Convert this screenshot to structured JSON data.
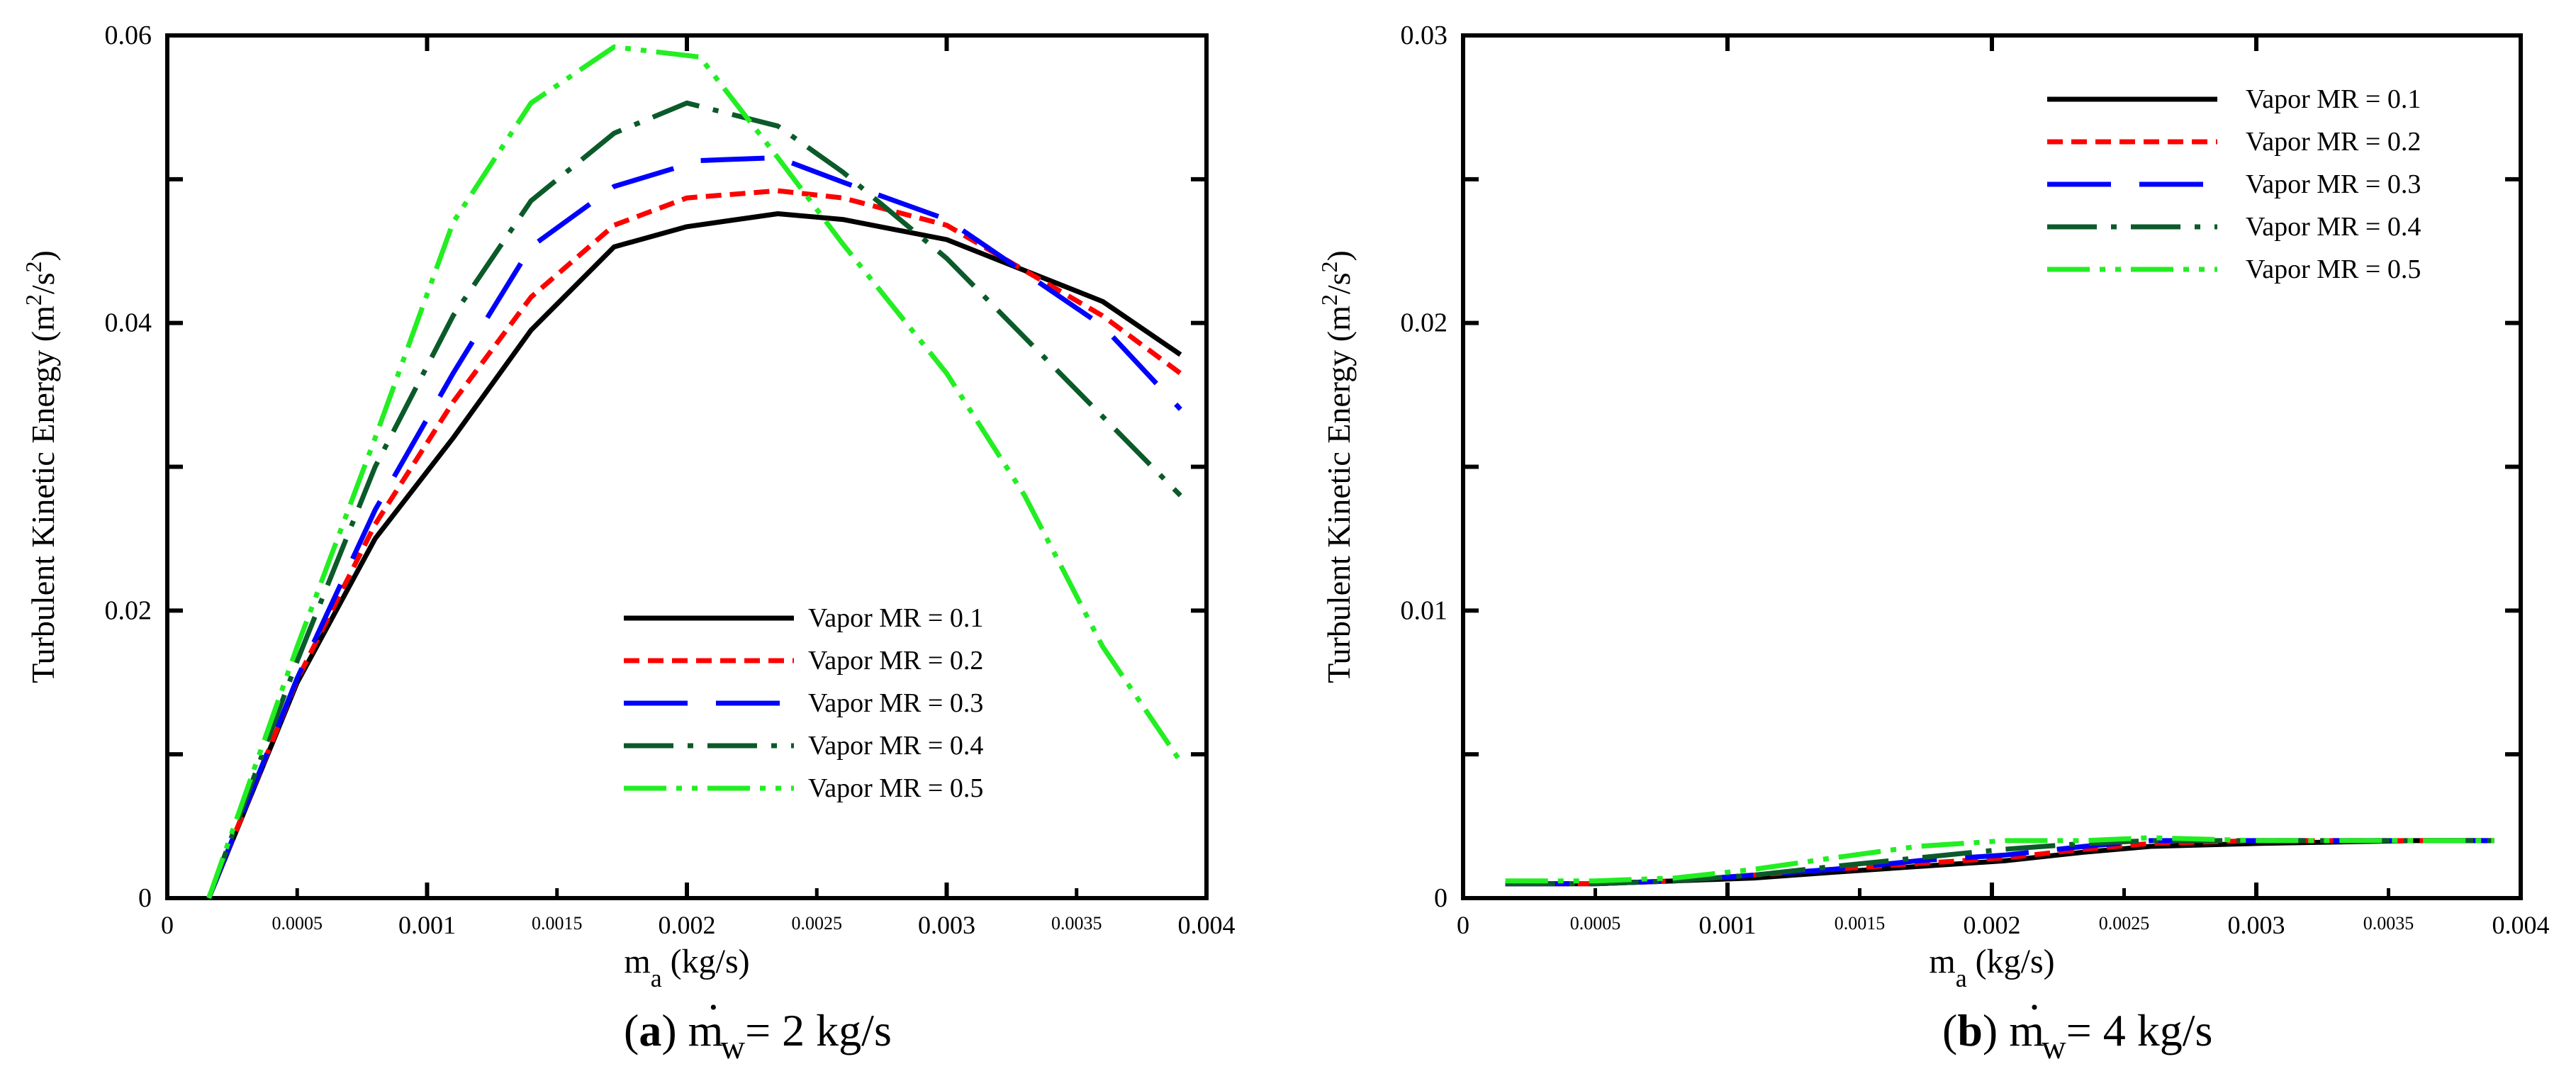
{
  "chart_data": [
    {
      "type": "line",
      "panel": "a",
      "caption": {
        "letter": "a",
        "text": "ṁw= 2 kg/s",
        "m": "m",
        "dot": "·",
        "sub": "w",
        "rest": "= 2 kg/s"
      },
      "xlabel": {
        "main": "m",
        "sub": "a",
        "unit": " (kg/s)"
      },
      "ylabel": {
        "main": "Turbulent Kinetic Energy (m",
        "sup1": "2",
        "mid": "/s",
        "sup2": "2",
        "end": ")"
      },
      "xlim": [
        0,
        0.004
      ],
      "ylim": [
        0,
        0.06
      ],
      "x_ticks_major": [
        {
          "value": 0,
          "label": "0"
        },
        {
          "value": 0.001,
          "label": "0.001"
        },
        {
          "value": 0.002,
          "label": "0.002"
        },
        {
          "value": 0.003,
          "label": "0.003"
        },
        {
          "value": 0.004,
          "label": "0.004"
        }
      ],
      "x_ticks_minor": [
        {
          "value": 0.0005,
          "label": "0.0005"
        },
        {
          "value": 0.0015,
          "label": "0.0015"
        },
        {
          "value": 0.0025,
          "label": "0.0025"
        },
        {
          "value": 0.0035,
          "label": "0.0035"
        }
      ],
      "y_ticks": [
        {
          "value": 0,
          "label": "0"
        },
        {
          "value": 0.02,
          "label": "0.02"
        },
        {
          "value": 0.04,
          "label": "0.04"
        },
        {
          "value": 0.06,
          "label": "0.06"
        }
      ],
      "y_ticks_minor": [
        0.01,
        0.03,
        0.05
      ],
      "legend_position": "lower-right",
      "series": [
        {
          "name": "Vapor MR = 0.1",
          "color": "#000000",
          "dash": "solid",
          "x": [
            0.00016,
            0.0005,
            0.0008,
            0.0011,
            0.0014,
            0.00172,
            0.002,
            0.00235,
            0.0026,
            0.003,
            0.0036,
            0.0039
          ],
          "y": [
            0.0,
            0.015,
            0.025,
            0.032,
            0.0395,
            0.0453,
            0.0467,
            0.0476,
            0.0472,
            0.0458,
            0.0415,
            0.0378
          ]
        },
        {
          "name": "Vapor MR = 0.2",
          "color": "#ff0000",
          "dash": "short-dash",
          "x": [
            0.00016,
            0.0005,
            0.0008,
            0.0011,
            0.0014,
            0.00172,
            0.002,
            0.00235,
            0.0026,
            0.003,
            0.0036,
            0.0039
          ],
          "y": [
            0.0,
            0.0152,
            0.026,
            0.0345,
            0.0418,
            0.0468,
            0.0487,
            0.0492,
            0.0487,
            0.0468,
            0.0405,
            0.0365
          ]
        },
        {
          "name": "Vapor MR = 0.3",
          "color": "#0000ff",
          "dash": "long-dash",
          "x": [
            0.00016,
            0.0005,
            0.0008,
            0.0011,
            0.0014,
            0.00172,
            0.00205,
            0.00235,
            0.0026,
            0.003,
            0.0036,
            0.0039
          ],
          "y": [
            0.0,
            0.0153,
            0.027,
            0.0365,
            0.0453,
            0.0495,
            0.0513,
            0.0515,
            0.0498,
            0.0472,
            0.0398,
            0.034
          ]
        },
        {
          "name": "Vapor MR = 0.4",
          "color": "#0b5a2a",
          "dash": "dash-dot",
          "x": [
            0.00016,
            0.0005,
            0.0008,
            0.0011,
            0.0014,
            0.00172,
            0.002,
            0.00235,
            0.0026,
            0.003,
            0.0036,
            0.0039
          ],
          "y": [
            0.0,
            0.0165,
            0.03,
            0.0405,
            0.0485,
            0.0532,
            0.0553,
            0.0537,
            0.0505,
            0.0445,
            0.0335,
            0.028
          ]
        },
        {
          "name": "Vapor MR = 0.5",
          "color": "#22ee22",
          "dash": "dash-dot-dot",
          "x": [
            0.00016,
            0.0005,
            0.0008,
            0.0011,
            0.0014,
            0.00172,
            0.00205,
            0.00235,
            0.0026,
            0.003,
            0.0033,
            0.0036,
            0.0039
          ],
          "y": [
            0.0,
            0.0175,
            0.032,
            0.047,
            0.0553,
            0.0592,
            0.0585,
            0.0515,
            0.0455,
            0.0365,
            0.028,
            0.0175,
            0.0095
          ]
        }
      ]
    },
    {
      "type": "line",
      "panel": "b",
      "caption": {
        "letter": "b",
        "text": "ṁw= 4 kg/s",
        "m": "m",
        "dot": "·",
        "sub": "w",
        "rest": "= 4 kg/s"
      },
      "xlabel": {
        "main": "m",
        "sub": "a",
        "unit": " (kg/s)"
      },
      "ylabel": {
        "main": "Turbulent Kinetic Energy (m",
        "sup1": "2",
        "mid": "/s",
        "sup2": "2",
        "end": ")"
      },
      "xlim": [
        0,
        0.004
      ],
      "ylim": [
        0,
        0.03
      ],
      "x_ticks_major": [
        {
          "value": 0,
          "label": "0"
        },
        {
          "value": 0.001,
          "label": "0.001"
        },
        {
          "value": 0.002,
          "label": "0.002"
        },
        {
          "value": 0.003,
          "label": "0.003"
        },
        {
          "value": 0.004,
          "label": "0.004"
        }
      ],
      "x_ticks_minor": [
        {
          "value": 0.0005,
          "label": "0.0005"
        },
        {
          "value": 0.0015,
          "label": "0.0015"
        },
        {
          "value": 0.0025,
          "label": "0.0025"
        },
        {
          "value": 0.0035,
          "label": "0.0035"
        }
      ],
      "y_ticks": [
        {
          "value": 0,
          "label": "0"
        },
        {
          "value": 0.01,
          "label": "0.01"
        },
        {
          "value": 0.02,
          "label": "0.02"
        },
        {
          "value": 0.03,
          "label": "0.03"
        }
      ],
      "y_ticks_minor": [
        0.005,
        0.015,
        0.025
      ],
      "legend_position": "top-right",
      "series": [
        {
          "name": "Vapor MR = 0.1",
          "color": "#000000",
          "dash": "solid",
          "x": [
            0.00016,
            0.0005,
            0.0008,
            0.0011,
            0.0014,
            0.00172,
            0.00205,
            0.00235,
            0.0026,
            0.003,
            0.0036,
            0.0039
          ],
          "y": [
            0.0005,
            0.0005,
            0.0006,
            0.0007,
            0.0009,
            0.0011,
            0.0013,
            0.0016,
            0.0018,
            0.0019,
            0.002,
            0.002
          ]
        },
        {
          "name": "Vapor MR = 0.2",
          "color": "#ff0000",
          "dash": "short-dash",
          "x": [
            0.00016,
            0.0005,
            0.0008,
            0.0011,
            0.0014,
            0.00172,
            0.00205,
            0.00235,
            0.0026,
            0.003,
            0.0036,
            0.0039
          ],
          "y": [
            0.0005,
            0.0005,
            0.0006,
            0.0008,
            0.001,
            0.0012,
            0.0014,
            0.0017,
            0.0019,
            0.002,
            0.002,
            0.002
          ]
        },
        {
          "name": "Vapor MR = 0.3",
          "color": "#0000ff",
          "dash": "long-dash",
          "x": [
            0.00016,
            0.0005,
            0.0008,
            0.0011,
            0.0014,
            0.00172,
            0.00205,
            0.00235,
            0.0026,
            0.003,
            0.0036,
            0.0039
          ],
          "y": [
            0.0005,
            0.0005,
            0.0006,
            0.0008,
            0.001,
            0.0013,
            0.0015,
            0.0018,
            0.002,
            0.002,
            0.002,
            0.002
          ]
        },
        {
          "name": "Vapor MR = 0.4",
          "color": "#0b5a2a",
          "dash": "dash-dot",
          "x": [
            0.00016,
            0.0005,
            0.0008,
            0.0011,
            0.0014,
            0.00172,
            0.00205,
            0.00235,
            0.0026,
            0.003,
            0.0036,
            0.0039
          ],
          "y": [
            0.0005,
            0.0005,
            0.0006,
            0.0008,
            0.0011,
            0.0014,
            0.0017,
            0.0019,
            0.002,
            0.002,
            0.002,
            0.002
          ]
        },
        {
          "name": "Vapor MR = 0.5",
          "color": "#22ee22",
          "dash": "dash-dot-dot",
          "x": [
            0.00016,
            0.0005,
            0.0008,
            0.0011,
            0.0014,
            0.00172,
            0.00205,
            0.00235,
            0.0026,
            0.003,
            0.0036,
            0.0039
          ],
          "y": [
            0.0006,
            0.0006,
            0.0007,
            0.001,
            0.0014,
            0.0018,
            0.002,
            0.002,
            0.0021,
            0.002,
            0.002,
            0.002
          ]
        }
      ]
    }
  ]
}
